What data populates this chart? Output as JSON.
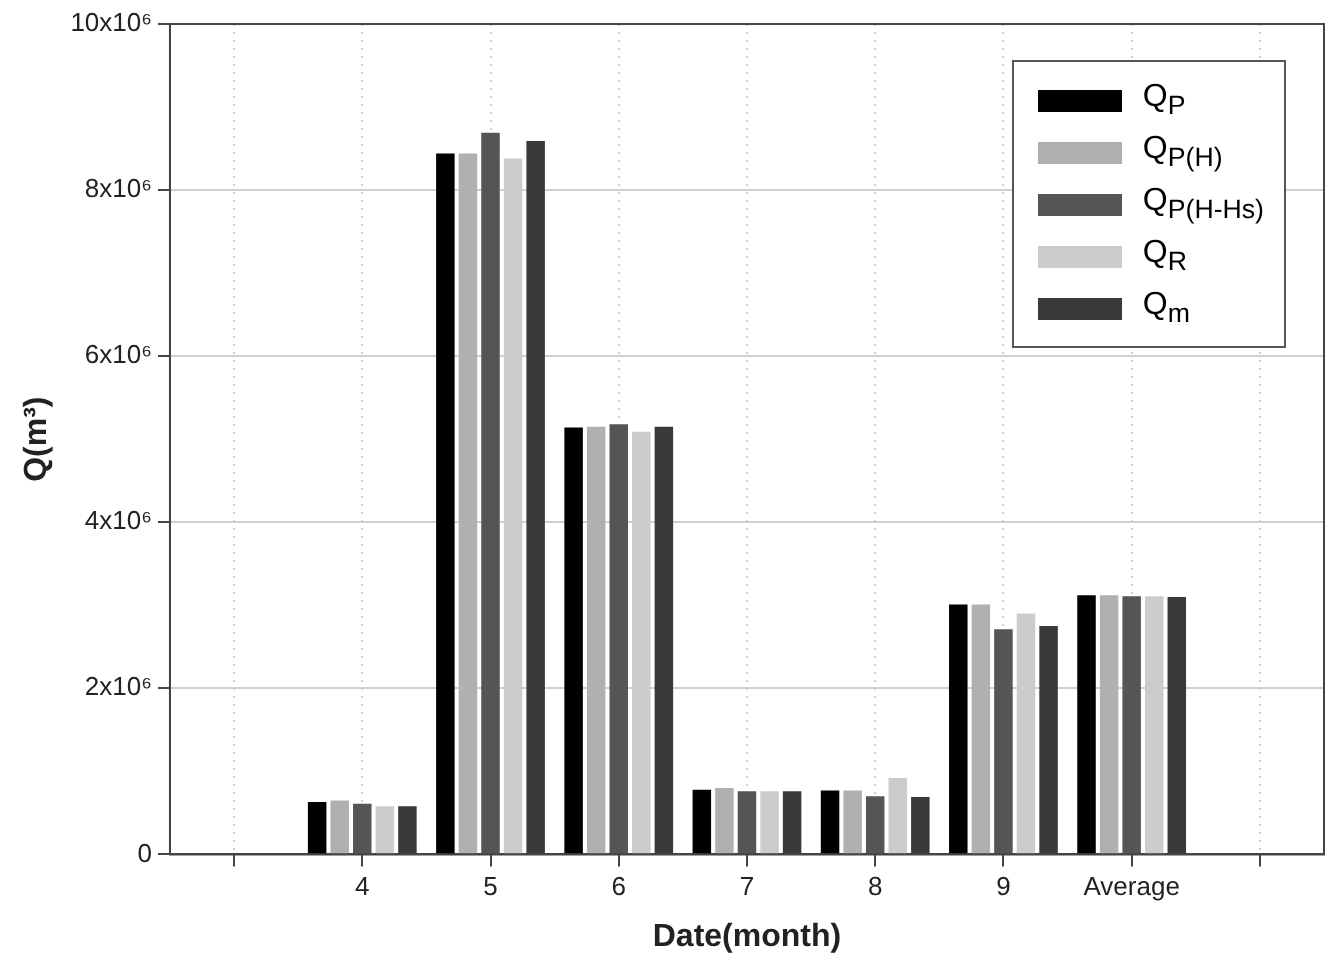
{
  "chart_data": {
    "type": "bar",
    "xlabel": "Date(month)",
    "ylabel": "Q(m³)",
    "categories": [
      null,
      "4",
      "5",
      "6",
      "7",
      "8",
      "9",
      "Average",
      null
    ],
    "series": [
      {
        "name": "Q$_{P}$",
        "color": "#000000",
        "values": [
          null,
          630000,
          8440000,
          5140000,
          780000,
          770000,
          3010000,
          3120000,
          null
        ]
      },
      {
        "name": "Q$_{P(H)}$",
        "color": "#b0b0b0",
        "values": [
          null,
          650000,
          8440000,
          5150000,
          800000,
          770000,
          3010000,
          3120000,
          null
        ]
      },
      {
        "name": "Q$_{P(H-Hs)}$",
        "color": "#555555",
        "values": [
          null,
          610000,
          8690000,
          5180000,
          760000,
          700000,
          2710000,
          3110000,
          null
        ]
      },
      {
        "name": "Q$_{R}$",
        "color": "#cccccc",
        "values": [
          null,
          580000,
          8380000,
          5090000,
          760000,
          920000,
          2900000,
          3110000,
          null
        ]
      },
      {
        "name": "Q$_{m}$",
        "color": "#3a3a3a",
        "values": [
          null,
          580000,
          8590000,
          5150000,
          760000,
          690000,
          2750000,
          3100000,
          null
        ]
      }
    ],
    "ylim": [
      0,
      10000000
    ],
    "yticks": [
      0,
      {
        "value": 2000000,
        "label": "2x10⁶"
      },
      {
        "value": 4000000,
        "label": "4x10⁶"
      },
      {
        "value": 6000000,
        "label": "6x10⁶"
      },
      {
        "value": 8000000,
        "label": "8x10⁶"
      },
      {
        "value": 10000000,
        "label": "10x10⁶"
      }
    ],
    "grid": true,
    "legend": "top right"
  }
}
